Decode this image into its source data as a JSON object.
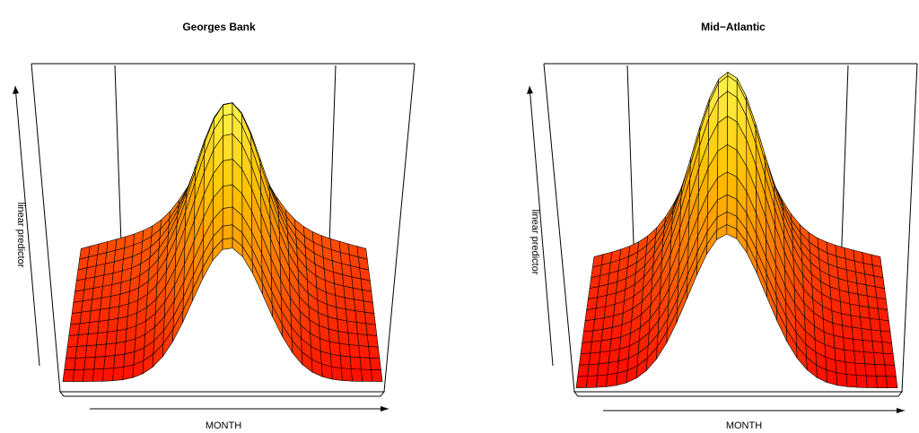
{
  "chart_data": [
    {
      "type": "surface",
      "title": "Georges Bank",
      "xlabel": "MONTH",
      "ylabel": "linear predictor",
      "color_scale": [
        "#ff0000",
        "#ff6a00",
        "#ffc400",
        "#ffff60"
      ],
      "mesh": {
        "nx": 32,
        "ny": 12
      },
      "surface": {
        "peak_month_frac": 0.52,
        "peak_width": 0.16,
        "ridge_frac": 0.33,
        "base_level": 0.04,
        "peak_level": 0.78,
        "shoulder_level": 0.22
      }
    },
    {
      "type": "surface",
      "title": "Mid−Atlantic",
      "xlabel": "MONTH",
      "ylabel": "linear predictor",
      "color_scale": [
        "#ff0000",
        "#ff6a00",
        "#ffc400",
        "#ffff60"
      ],
      "mesh": {
        "nx": 32,
        "ny": 12
      },
      "surface": {
        "peak_month_frac": 0.47,
        "peak_width": 0.17,
        "ridge_frac": 0.3,
        "base_level": 0.02,
        "peak_level": 0.86,
        "shoulder_level": 0.2
      }
    }
  ]
}
